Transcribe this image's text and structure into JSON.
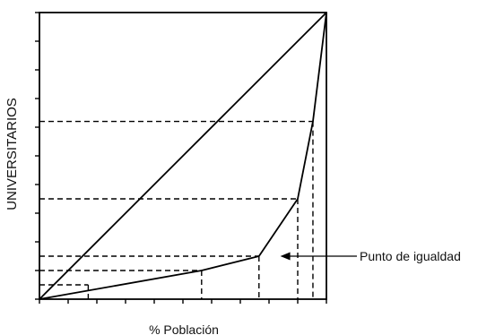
{
  "chart_data": {
    "type": "line",
    "title": "",
    "xlabel": "% Población",
    "ylabel": "UNIVERSITARIOS",
    "xlim": [
      0,
      100
    ],
    "ylim": [
      0,
      100
    ],
    "x_ticks": [
      0,
      10,
      20,
      30,
      40,
      50,
      60,
      70,
      80,
      90,
      100
    ],
    "y_ticks": [
      0,
      10,
      20,
      30,
      40,
      50,
      60,
      70,
      80,
      90,
      100
    ],
    "grid": false,
    "series": [
      {
        "line": "equality-diagonal",
        "x": [
          0,
          100
        ],
        "y": [
          0,
          100
        ]
      },
      {
        "line": "concentration-curve",
        "x": [
          0,
          56.5,
          76.5,
          90,
          95.3,
          100
        ],
        "y": [
          0,
          10,
          15,
          35,
          62,
          100
        ]
      }
    ],
    "reference_lines": [
      {
        "x": 17,
        "y": 5
      },
      {
        "x": 56.5,
        "y": 10
      },
      {
        "x": 76.5,
        "y": 15
      },
      {
        "x": 90,
        "y": 35
      },
      {
        "x": 95.3,
        "y": 62
      }
    ],
    "annotations": [
      {
        "text": "Punto de igualdad",
        "x": 83,
        "y": 15
      }
    ],
    "colors": {
      "line": "#000000",
      "background": "#ffffff"
    }
  }
}
